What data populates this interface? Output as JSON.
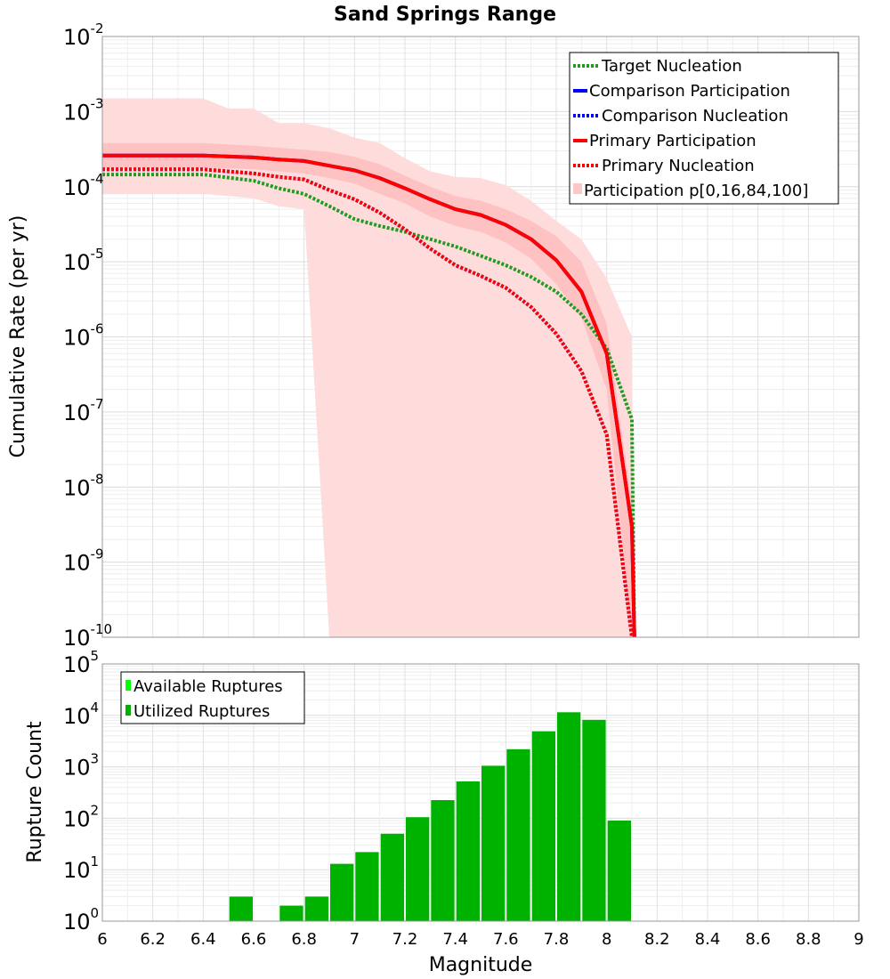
{
  "chart_data": [
    {
      "type": "line",
      "title": "Sand Springs Range",
      "xlabel": "Magnitude",
      "ylabel": "Cumulative Rate (per yr)",
      "yscale": "log",
      "xlim": [
        6,
        9
      ],
      "ylim_exponents": [
        -10,
        -2
      ],
      "y_tick_base": "10",
      "y_tick_exponents": [
        "-10",
        "-9",
        "-8",
        "-7",
        "-6",
        "-5",
        "-4",
        "-3",
        "-2"
      ],
      "grid": true,
      "legend_position": "top-right",
      "legend": [
        {
          "label": "Target Nucleation",
          "color": "#1f9c1f",
          "style": "dotted"
        },
        {
          "label": "Comparison Participation",
          "color": "#0000ff",
          "style": "solid"
        },
        {
          "label": "Comparison Nucleation",
          "color": "#0000ff",
          "style": "dotted"
        },
        {
          "label": "Primary Participation",
          "color": "#ff0000",
          "style": "solid"
        },
        {
          "label": "Primary Nucleation",
          "color": "#ff0000",
          "style": "dotted"
        },
        {
          "label": "Participation p[0,16,84,100]",
          "color": "#ffc8c8",
          "style": "fill"
        }
      ],
      "series": [
        {
          "name": "Target Nucleation",
          "color": "#1f9c1f",
          "style": "dotted",
          "x": [
            6.0,
            6.4,
            6.6,
            6.7,
            6.8,
            6.9,
            7.0,
            7.1,
            7.2,
            7.3,
            7.4,
            7.5,
            7.6,
            7.7,
            7.8,
            7.9,
            8.0,
            8.1,
            8.11
          ],
          "y": [
            0.000145,
            0.000145,
            0.00012,
            9.5e-05,
            8e-05,
            5.5e-05,
            3.7e-05,
            3e-05,
            2.5e-05,
            2e-05,
            1.6e-05,
            1.2e-05,
            9e-06,
            6.3e-06,
            4e-06,
            2e-06,
            7e-07,
            8e-08,
            1e-10
          ]
        },
        {
          "name": "Comparison Participation",
          "color": "#0000ff",
          "style": "solid",
          "x": [
            6.0,
            6.4,
            6.6,
            6.7,
            6.8,
            6.9,
            7.0,
            7.1,
            7.2,
            7.3,
            7.4,
            7.5,
            7.6,
            7.7,
            7.8,
            7.9,
            8.0,
            8.1,
            8.11
          ],
          "y": [
            0.00026,
            0.00026,
            0.000245,
            0.00023,
            0.00022,
            0.00019,
            0.000165,
            0.00013,
            9.5e-05,
            6.8e-05,
            5e-05,
            4.2e-05,
            3.1e-05,
            2e-05,
            1.05e-05,
            4e-06,
            6e-07,
            3e-09,
            1e-10
          ]
        },
        {
          "name": "Comparison Nucleation",
          "color": "#0000ff",
          "style": "dotted",
          "x": [
            6.0,
            6.4,
            6.6,
            6.7,
            6.8,
            6.9,
            7.0,
            7.1,
            7.2,
            7.3,
            7.4,
            7.5,
            7.6,
            7.7,
            7.8,
            7.9,
            8.0,
            8.1
          ],
          "y": [
            0.00017,
            0.00017,
            0.00015,
            0.000135,
            0.000125,
            9e-05,
            6.8e-05,
            4.5e-05,
            2.7e-05,
            1.5e-05,
            9e-06,
            6.5e-06,
            4.5e-06,
            2.5e-06,
            1.1e-06,
            3.5e-07,
            5e-08,
            1e-10
          ]
        },
        {
          "name": "Primary Participation",
          "color": "#ff0000",
          "style": "solid",
          "x": [
            6.0,
            6.4,
            6.6,
            6.7,
            6.8,
            6.9,
            7.0,
            7.1,
            7.2,
            7.3,
            7.4,
            7.5,
            7.6,
            7.7,
            7.8,
            7.9,
            8.0,
            8.1,
            8.11
          ],
          "y": [
            0.00026,
            0.00026,
            0.000245,
            0.00023,
            0.00022,
            0.00019,
            0.000165,
            0.00013,
            9.5e-05,
            6.8e-05,
            5e-05,
            4.2e-05,
            3.1e-05,
            2e-05,
            1.05e-05,
            4e-06,
            6e-07,
            3e-09,
            1e-10
          ]
        },
        {
          "name": "Primary Nucleation",
          "color": "#ff0000",
          "style": "dotted",
          "x": [
            6.0,
            6.4,
            6.6,
            6.7,
            6.8,
            6.9,
            7.0,
            7.1,
            7.2,
            7.3,
            7.4,
            7.5,
            7.6,
            7.7,
            7.8,
            7.9,
            8.0,
            8.1
          ],
          "y": [
            0.00017,
            0.00017,
            0.00015,
            0.000135,
            0.000125,
            9e-05,
            6.8e-05,
            4.5e-05,
            2.7e-05,
            1.5e-05,
            9e-06,
            6.5e-06,
            4.5e-06,
            2.5e-06,
            1.1e-06,
            3.5e-07,
            5e-08,
            1e-10
          ]
        }
      ],
      "bands": [
        {
          "name": "Participation p0-p100",
          "color": "#ffdcdc",
          "x": [
            6.0,
            6.4,
            6.5,
            6.6,
            6.7,
            6.8,
            6.9,
            7.0,
            7.1,
            7.2,
            7.3,
            7.4,
            7.5,
            7.6,
            7.7,
            7.8,
            7.9,
            8.0,
            8.1,
            8.11
          ],
          "upper": [
            0.0015,
            0.0015,
            0.0011,
            0.0011,
            0.0007,
            0.0007,
            0.0006,
            0.00045,
            0.00038,
            0.00024,
            0.00016,
            0.000135,
            0.00013,
            0.000105,
            6.5e-05,
            3.5e-05,
            2e-05,
            6e-06,
            1e-06,
            1e-10
          ],
          "lower": [
            8e-05,
            8e-05,
            7.5e-05,
            7e-05,
            5.5e-05,
            5e-05,
            1e-10,
            1e-10,
            1e-10,
            1e-10,
            1e-10,
            1e-10,
            1e-10,
            1e-10,
            1e-10,
            1e-10,
            1e-10,
            1e-10,
            1e-10,
            1e-10
          ]
        },
        {
          "name": "Participation p16-p84",
          "color": "#ffc2c2",
          "x": [
            6.0,
            6.4,
            6.6,
            6.7,
            6.8,
            6.9,
            7.0,
            7.1,
            7.2,
            7.3,
            7.4,
            7.5,
            7.6,
            7.7,
            7.8,
            7.9,
            8.0,
            8.1,
            8.11
          ],
          "upper": [
            0.00038,
            0.00038,
            0.00035,
            0.00033,
            0.00031,
            0.00029,
            0.00025,
            0.0002,
            0.00014,
            0.0001,
            7.5e-05,
            6.5e-05,
            5e-05,
            3.5e-05,
            2.2e-05,
            1e-05,
            1.5e-06,
            6e-09,
            1e-10
          ],
          "lower": [
            0.00018,
            0.00018,
            0.00017,
            0.00016,
            0.00015,
            0.00013,
            0.00011,
            8e-05,
            6e-05,
            4e-05,
            3e-05,
            2.5e-05,
            1.8e-05,
            1.1e-05,
            5e-06,
            1.8e-06,
            2e-07,
            1e-10,
            1e-10
          ]
        }
      ]
    },
    {
      "type": "bar",
      "xlabel": "Magnitude",
      "ylabel": "Rupture Count",
      "yscale": "log",
      "xlim": [
        6,
        9
      ],
      "ylim_exponents": [
        0,
        5
      ],
      "x_ticks": [
        "6",
        "6.2",
        "6.4",
        "6.6",
        "6.8",
        "7",
        "7.2",
        "7.4",
        "7.6",
        "7.8",
        "8",
        "8.2",
        "8.4",
        "8.6",
        "8.8",
        "9"
      ],
      "y_tick_base": "10",
      "y_tick_exponents": [
        "0",
        "1",
        "2",
        "3",
        "4",
        "5"
      ],
      "grid": true,
      "legend_position": "top-left",
      "legend": [
        {
          "label": "Available Ruptures",
          "color": "#00ff00"
        },
        {
          "label": "Utilized Ruptures",
          "color": "#00b000"
        }
      ],
      "bar_width": 0.1,
      "bar_color": "#00b200",
      "bars": [
        {
          "x": 6.55,
          "value": 3
        },
        {
          "x": 6.75,
          "value": 2
        },
        {
          "x": 6.85,
          "value": 3
        },
        {
          "x": 6.95,
          "value": 13
        },
        {
          "x": 7.05,
          "value": 22
        },
        {
          "x": 7.15,
          "value": 50
        },
        {
          "x": 7.25,
          "value": 105
        },
        {
          "x": 7.35,
          "value": 225
        },
        {
          "x": 7.45,
          "value": 520
        },
        {
          "x": 7.55,
          "value": 1050
        },
        {
          "x": 7.65,
          "value": 2200
        },
        {
          "x": 7.75,
          "value": 4900
        },
        {
          "x": 7.85,
          "value": 11500
        },
        {
          "x": 7.95,
          "value": 8200
        },
        {
          "x": 8.05,
          "value": 90
        }
      ]
    }
  ]
}
